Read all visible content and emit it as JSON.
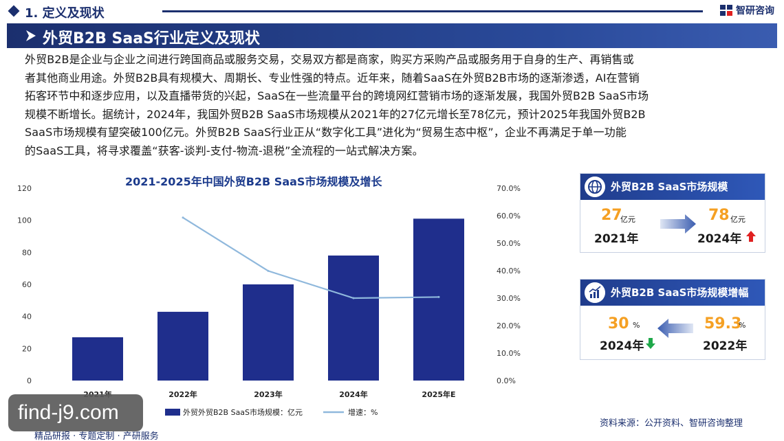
{
  "header": {
    "section_title": "1. 定义及现状",
    "logo_text": "智研咨询"
  },
  "title_band": {
    "title": "外贸B2B SaaS行业定义及现状"
  },
  "paragraph": {
    "lines": [
      "外贸B2B是企业与企业之间进行跨国商品或服务交易，交易双方都是商家，购买方采购产品或服务用于自身的生产、再销售或",
      "者其他商业用途。外贸B2B具有规模大、周期长、专业性强的特点。近年来，随着SaaS在外贸B2B市场的逐渐渗透，AI在营销",
      "拓客环节中和逐步应用，以及直播带货的兴起，SaaS在一些流量平台的跨境网红营销市场的逐渐发展，我国外贸B2B SaaS市场",
      "规模不断增长。据统计，2024年，我国外贸B2B SaaS市场规模从2021年的27亿元增长至78亿元，预计2025年我国外贸B2B",
      "SaaS市场规模有望突破100亿元。外贸B2B SaaS行业正从“数字化工具”进化为“贸易生态中枢”，企业不再满足于单一功能",
      "的SaaS工具，将寻求覆盖“获客-谈判-支付-物流-退税”全流程的一站式解决方案。"
    ]
  },
  "chart_data": {
    "type": "bar",
    "title": "2021-2025年中国外贸B2B SaaS市场规模及增长",
    "categories": [
      "2021年",
      "2022年",
      "2023年",
      "2024年",
      "2025年E"
    ],
    "series": [
      {
        "name": "外贸外贸B2B SaaS市场规模：亿元",
        "type": "bar",
        "axis": "left",
        "values": [
          27,
          42.9,
          60,
          78,
          101
        ],
        "color": "#1f2e8c"
      },
      {
        "name": "增速：%",
        "type": "line",
        "axis": "right",
        "values": [
          null,
          59.3,
          39.9,
          30,
          30.4
        ],
        "color": "#8fb8dc"
      }
    ],
    "y_left": {
      "ylim": [
        0,
        120
      ],
      "ticks": [
        "0",
        "20",
        "40",
        "60",
        "80",
        "100",
        "120"
      ]
    },
    "y_right": {
      "ylim": [
        0,
        70
      ],
      "ticks": [
        "0.0%",
        "10.0%",
        "20.0%",
        "30.0%",
        "40.0%",
        "50.0%",
        "60.0%",
        "70.0%"
      ]
    },
    "grid": false,
    "legend_position": "bottom"
  },
  "card_scale": {
    "title": "外贸B2B SaaS市场规模",
    "left_value": "27",
    "left_unit": "亿元",
    "left_year": "2021年",
    "right_value": "78",
    "right_unit": "亿元",
    "right_year": "2024年",
    "accent": "#f5a023",
    "up_color": "#e02020"
  },
  "card_growth": {
    "title": "外贸B2B SaaS市场规模增幅",
    "left_value": "30",
    "left_unit": "%",
    "left_year": "2024年",
    "right_value": "59.3",
    "right_unit": "%",
    "right_year": "2022年",
    "down_color": "#1fa84a"
  },
  "source": "资料来源：公开资料、智研咨询整理",
  "footer": "精品研报 · 专题定制 · 产研服务",
  "watermark": "find-j9.com"
}
